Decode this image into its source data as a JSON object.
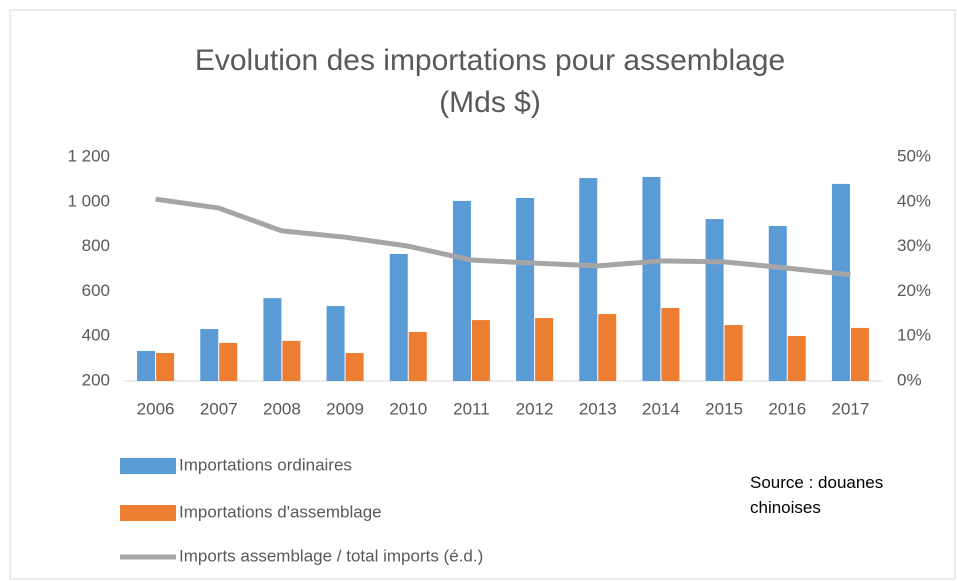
{
  "chart_data": {
    "type": "bar_line",
    "title": "Evolution des importations pour assemblage",
    "subtitle": "(Mds $)",
    "annotation": "Source : douanes chinoises",
    "categories": [
      "2006",
      "2007",
      "2008",
      "2009",
      "2010",
      "2011",
      "2012",
      "2013",
      "2014",
      "2015",
      "2016",
      "2017"
    ],
    "series": [
      {
        "name": "Importations ordinaires",
        "type": "bar",
        "color": "#5b9bd5",
        "values": [
          334,
          432,
          570,
          535,
          767,
          1004,
          1017,
          1106,
          1111,
          923,
          892,
          1080
        ]
      },
      {
        "name": "Importations d'assemblage",
        "type": "bar",
        "color": "#ed7d31",
        "values": [
          325,
          370,
          379,
          325,
          419,
          472,
          481,
          499,
          526,
          450,
          401,
          437
        ]
      },
      {
        "name": "Imports assemblage / total imports (é.d.)",
        "type": "line",
        "axis": "y2",
        "color": "#a5a5a5",
        "values": [
          40.6,
          38.6,
          33.5,
          32.1,
          30.1,
          27.0,
          26.3,
          25.7,
          26.8,
          26.6,
          25.2,
          23.7
        ]
      }
    ],
    "ylim": [
      200,
      1200
    ],
    "yticks": [
      200,
      400,
      600,
      800,
      {
        "value": 1000,
        "label": "1 000"
      },
      {
        "value": 1200,
        "label": "1 200"
      }
    ],
    "y2lim": [
      0,
      50
    ],
    "y2ticks": [
      {
        "value": 0,
        "label": "0%"
      },
      {
        "value": 10,
        "label": "10%"
      },
      {
        "value": 20,
        "label": "20%"
      },
      {
        "value": 30,
        "label": "30%"
      },
      {
        "value": 40,
        "label": "40%"
      },
      {
        "value": 50,
        "label": "50%"
      }
    ],
    "grid": false
  }
}
